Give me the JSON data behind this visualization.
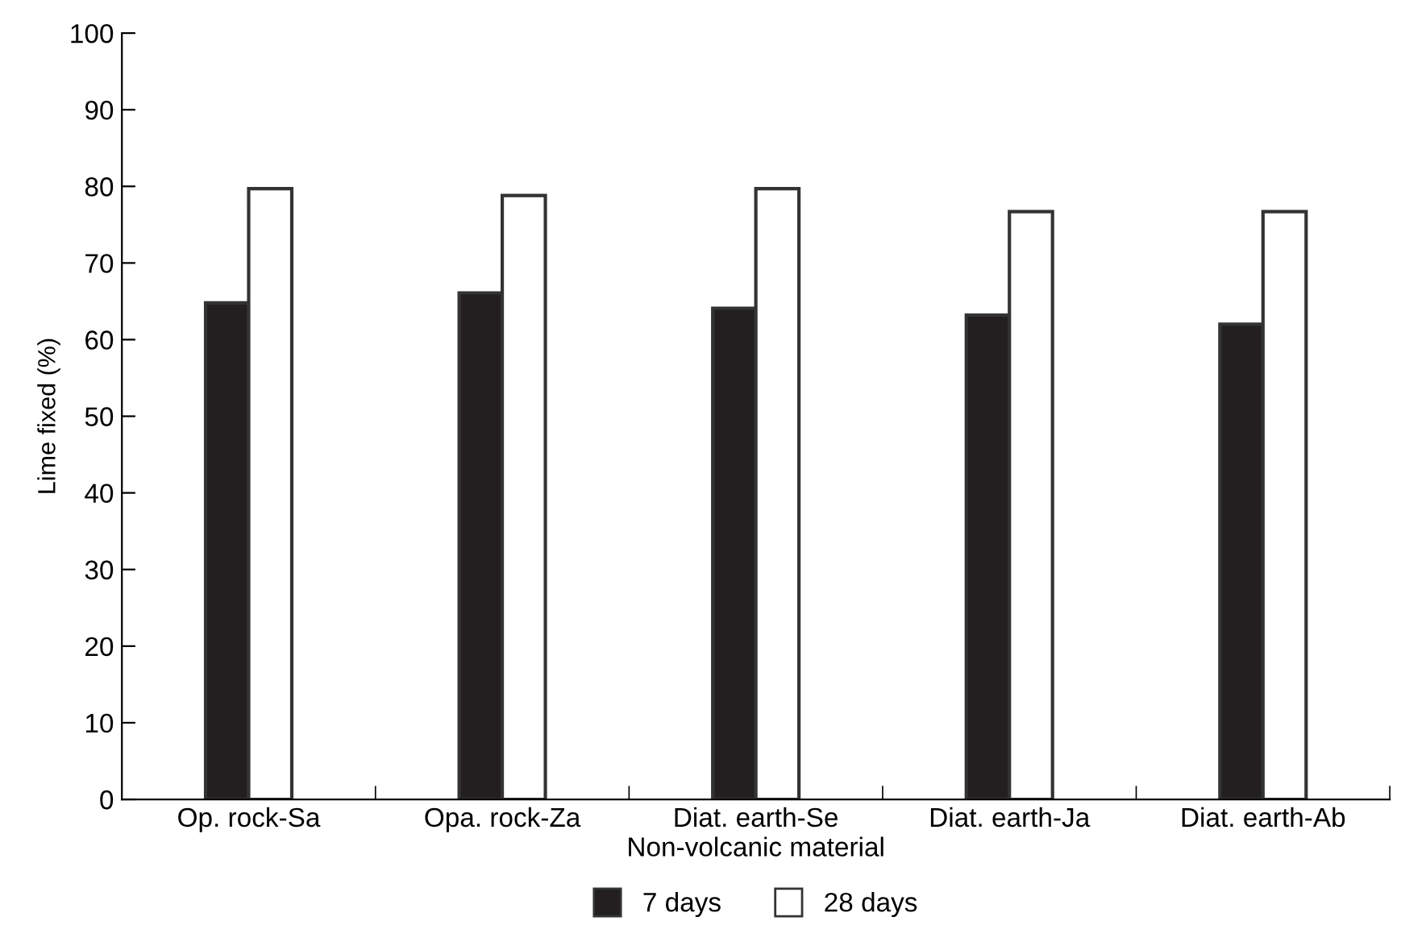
{
  "chart_data": {
    "type": "bar",
    "xlabel": "Non-volcanic material",
    "ylabel": "Lime fixed (%)",
    "categories": [
      "Op. rock-Sa",
      "Opa. rock-Za",
      "Diat. earth-Se",
      "Diat. earth-Ja",
      "Diat. earth-Ab"
    ],
    "series": [
      {
        "name": "7 days",
        "color": "#231f20",
        "values": [
          64.8,
          66.1,
          64.1,
          63.2,
          62.0
        ]
      },
      {
        "name": "28 days",
        "color": "#ffffff",
        "values": [
          79.7,
          78.8,
          79.7,
          76.7,
          76.7
        ]
      }
    ],
    "ylim": [
      0,
      100
    ],
    "yticks": [
      0,
      10,
      20,
      30,
      40,
      50,
      60,
      70,
      80,
      90,
      100
    ],
    "grid": false,
    "legend": "bottom"
  }
}
